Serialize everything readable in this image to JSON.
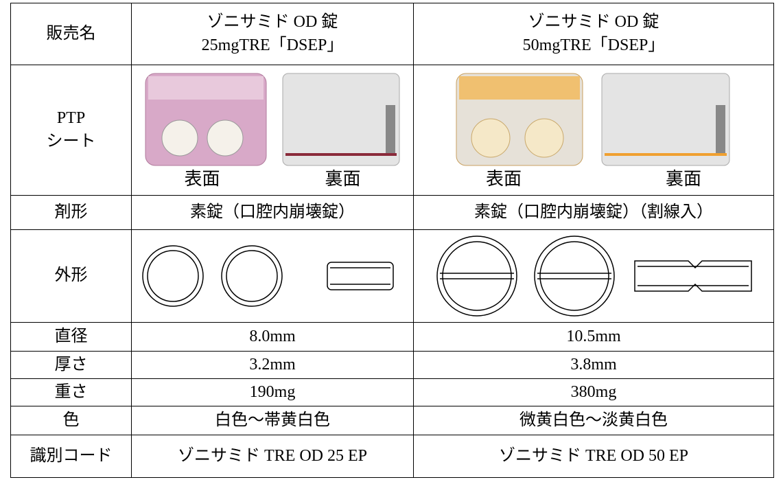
{
  "table": {
    "name": {
      "label": "販売名",
      "cells": [
        [
          "ゾニサミド OD 錠",
          "25mgTRE「DSEP」"
        ],
        [
          "ゾニサミド OD 錠",
          "50mgTRE「DSEP」"
        ]
      ]
    },
    "ptp": {
      "label": [
        "PTP",
        "シート"
      ],
      "captions": [
        [
          "表面",
          "裏面"
        ],
        [
          "表面",
          "裏面"
        ]
      ]
    },
    "form": {
      "label": "剤形",
      "cells": [
        "素錠（口腔内崩壊錠）",
        "素錠（口腔内崩壊錠）（割線入）"
      ]
    },
    "shape": {
      "label": "外形"
    },
    "specs": [
      {
        "label": "直径",
        "cells": [
          "8.0mm",
          "10.5mm"
        ]
      },
      {
        "label": "厚さ",
        "cells": [
          "3.2mm",
          "3.8mm"
        ]
      },
      {
        "label": "重さ",
        "cells": [
          "190mg",
          "380mg"
        ]
      },
      {
        "label": "色",
        "cells": [
          "白色～帯黄白色",
          "微黄白色～淡黄白色"
        ]
      },
      {
        "label": "識別コード",
        "cells": [
          "ゾニサミド TRE OD 25 EP",
          "ゾニサミド TRE OD 50 EP"
        ]
      }
    ]
  }
}
